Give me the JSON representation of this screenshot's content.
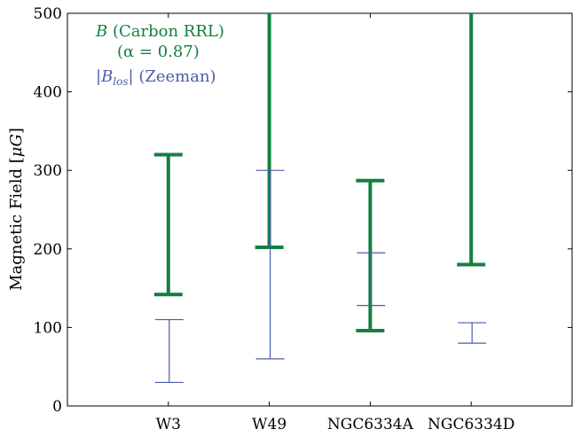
{
  "chart_data": {
    "type": "range",
    "ylabel": "Magnetic Field [μG]",
    "ylim": [
      0,
      500
    ],
    "yticks": [
      0,
      100,
      200,
      300,
      400,
      500
    ],
    "categories": [
      "W3",
      "W49",
      "NGC6334A",
      "NGC6334D"
    ],
    "series": [
      {
        "name": "B (Carbon RRL) (α = 0.87)",
        "color": "#138040",
        "ranges": [
          [
            142,
            320
          ],
          [
            202,
            500
          ],
          [
            96,
            287
          ],
          [
            180,
            500
          ]
        ]
      },
      {
        "name": "|B_los| (Zeeman)",
        "color": "#4a5cad",
        "ranges": [
          [
            30,
            110
          ],
          [
            60,
            300
          ],
          [
            128,
            195
          ],
          [
            80,
            106
          ]
        ]
      }
    ],
    "legend": {
      "position": "top-left",
      "green_line1_symbol": "B",
      "green_line1_text": " (Carbon RRL)",
      "green_line2_text": "(α = 0.87)",
      "blue_prefix": "|B",
      "blue_sub": "los",
      "blue_suffix": "| (Zeeman)"
    },
    "ylabel_parts": {
      "text": "Magnetic Field [",
      "symbol": "μG",
      "close": "]"
    }
  }
}
